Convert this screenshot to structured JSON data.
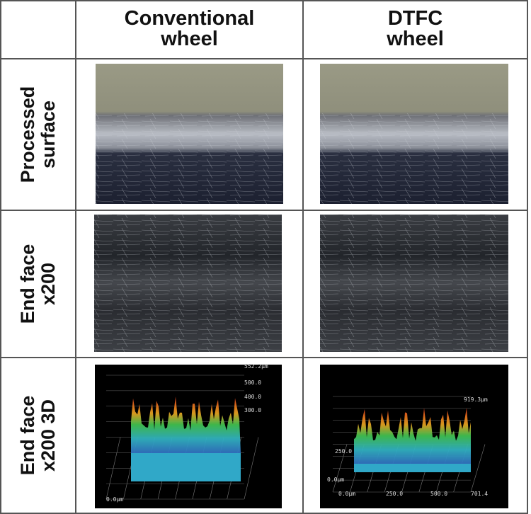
{
  "table": {
    "columns": [
      {
        "lines": [
          "Conventional",
          "wheel"
        ]
      },
      {
        "lines": [
          "DTFC",
          "wheel"
        ]
      }
    ],
    "rows": [
      {
        "lines": [
          "Processed",
          "surface"
        ]
      },
      {
        "lines": [
          "End face",
          "x200"
        ]
      },
      {
        "lines": [
          "End face",
          "x200 3D"
        ]
      }
    ],
    "plot_labels": {
      "conventional": [
        "552.2μm",
        "500.0",
        "400.0",
        "300.0",
        "0.0μm"
      ],
      "dtfc": [
        "919.3μm",
        "250.0",
        "0.0μm",
        "0.0μm",
        "250.0",
        "500.0",
        "701.4"
      ]
    }
  }
}
